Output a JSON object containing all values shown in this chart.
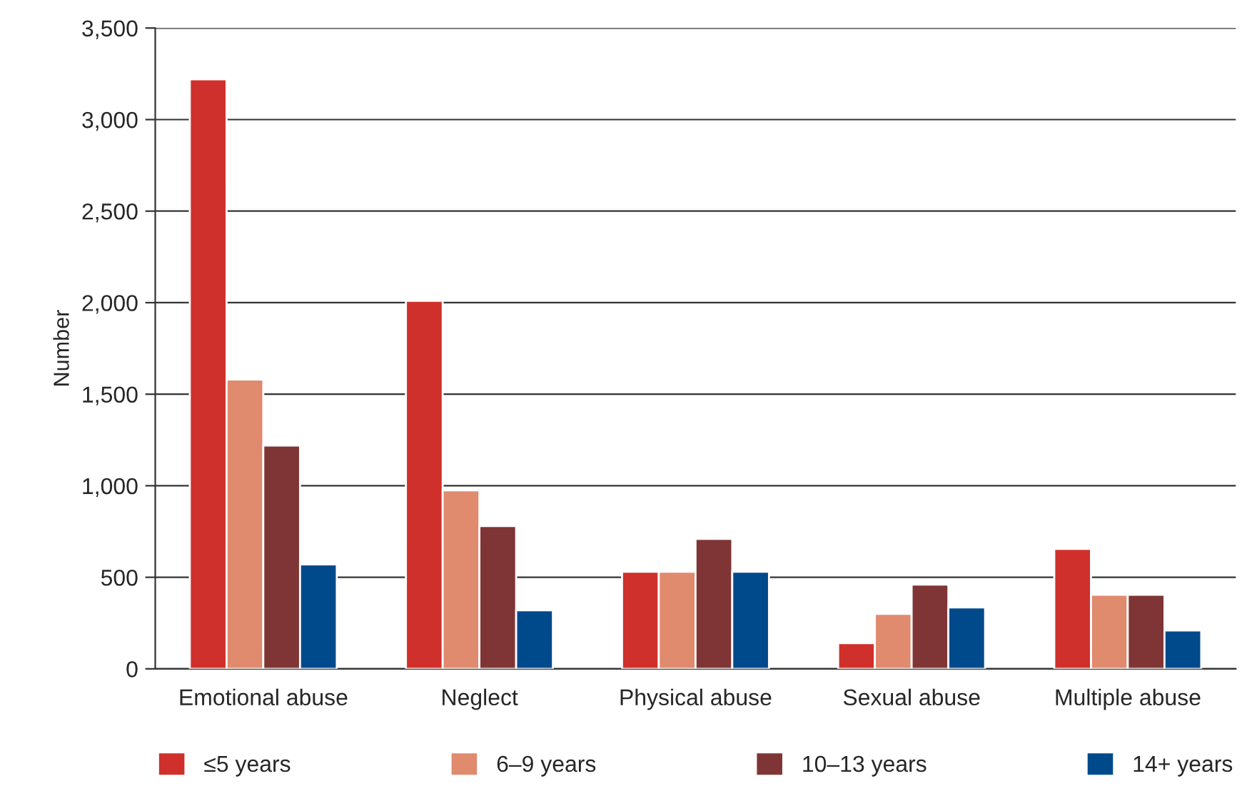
{
  "chart_data": {
    "type": "bar",
    "ylabel": "Number",
    "categories": [
      "Emotional abuse",
      "Neglect",
      "Physical abuse",
      "Sexual abuse",
      "Multiple abuse"
    ],
    "series": [
      {
        "name": "≤5 years",
        "color": "#d0302b",
        "values": [
          3220,
          2010,
          530,
          140,
          655
        ]
      },
      {
        "name": "6–9 years",
        "color": "#e08a6e",
        "values": [
          1580,
          975,
          530,
          300,
          405
        ]
      },
      {
        "name": "10–13 years",
        "color": "#7f3535",
        "values": [
          1220,
          780,
          710,
          460,
          405
        ]
      },
      {
        "name": "14+ years",
        "color": "#004a8c",
        "values": [
          570,
          320,
          530,
          335,
          210
        ]
      }
    ],
    "ylim": [
      0,
      3500
    ],
    "yticks": [
      0,
      {
        "value": 500,
        "label": "500"
      },
      {
        "value": 1000,
        "label": "1,000"
      },
      {
        "value": 1500,
        "label": "1,500"
      },
      {
        "value": 2000,
        "label": "2,000"
      },
      {
        "value": 2500,
        "label": "2,500"
      },
      {
        "value": 3000,
        "label": "3,000"
      },
      {
        "value": 3500,
        "label": "3,500"
      }
    ],
    "grid": "y",
    "legend": "bottom"
  }
}
